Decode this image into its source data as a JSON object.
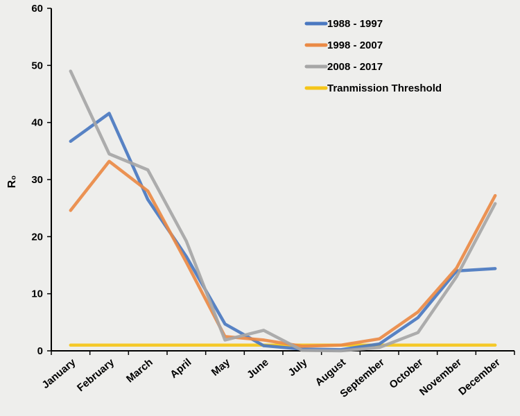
{
  "chart_data": {
    "type": "line",
    "ylabel": "R₀",
    "ylim": [
      0,
      60
    ],
    "yticks": [
      "0",
      "10",
      "20",
      "30",
      "40",
      "50",
      "60"
    ],
    "categories": [
      "January",
      "February",
      "March",
      "April",
      "May",
      "June",
      "July",
      "August",
      "September",
      "October",
      "November",
      "December"
    ],
    "grid": false,
    "legend_position": "top-right",
    "series": [
      {
        "name": "1988 - 1997",
        "color": "#4a78c0",
        "values": [
          36.7,
          41.6,
          26.5,
          16.5,
          4.7,
          0.9,
          0.3,
          0.2,
          1.2,
          5.8,
          14.0,
          14.4
        ]
      },
      {
        "name": "1998 - 2007",
        "color": "#ea8a45",
        "values": [
          24.6,
          33.2,
          28.0,
          15.5,
          2.5,
          1.9,
          0.8,
          1.0,
          2.1,
          6.8,
          14.5,
          27.2
        ]
      },
      {
        "name": "2008 - 2017",
        "color": "#a6a6a6",
        "values": [
          49.0,
          34.5,
          31.7,
          19.2,
          1.9,
          3.6,
          0.1,
          0.0,
          0.6,
          3.2,
          13.0,
          25.8
        ]
      },
      {
        "name": "Tranmission Threshold",
        "color": "#f5c518",
        "values": [
          1,
          1,
          1,
          1,
          1,
          1,
          1,
          1,
          1,
          1,
          1,
          1
        ]
      }
    ]
  }
}
